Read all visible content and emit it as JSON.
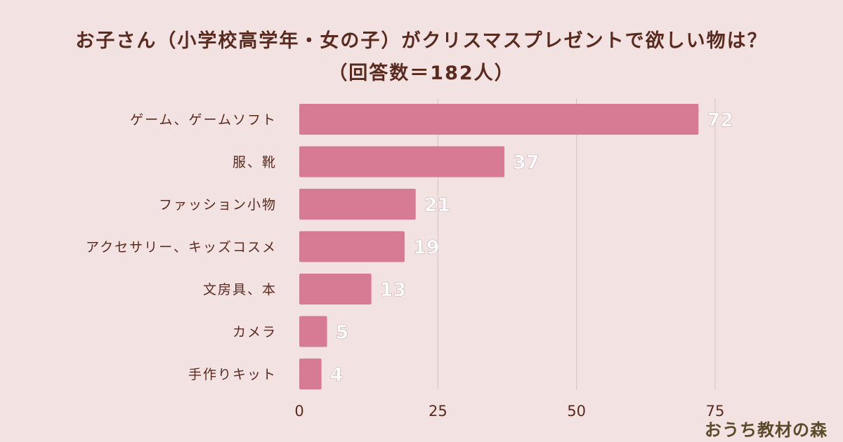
{
  "chart_data": {
    "type": "bar",
    "orientation": "horizontal",
    "title": "お子さん（小学校高学年・女の子）がクリスマスプレゼントで欲しい物は？",
    "subtitle": "（回答数＝182人）",
    "categories": [
      "ゲーム、ゲームソフト",
      "服、靴",
      "ファッション小物",
      "アクセサリー、キッズコスメ",
      "文房具、本",
      "カメラ",
      "手作りキット"
    ],
    "values": [
      72,
      37,
      21,
      19,
      13,
      5,
      4
    ],
    "xlim": [
      0,
      75
    ],
    "xticks": [
      0,
      25,
      50,
      75
    ],
    "grid": true,
    "bar_color": "#d67b93",
    "label_color": "#ffffff",
    "text_color": "#5a2a1e"
  },
  "watermark": "おうち教材の森"
}
